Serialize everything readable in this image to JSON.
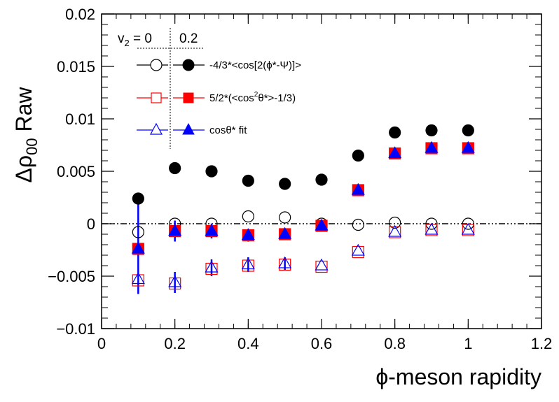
{
  "chart_data": {
    "type": "scatter",
    "xlabel": "ϕ-meson rapidity",
    "ylabel": "Δρ",
    "ylabel_sub": "00",
    "ylabel_suffix": " Raw",
    "xlim": [
      0,
      1.2
    ],
    "ylim": [
      -0.01,
      0.02
    ],
    "x_ticks": [
      "0",
      "0.2",
      "0.4",
      "0.6",
      "0.8",
      "1",
      "1.2"
    ],
    "y_ticks": [
      "−0.01",
      "−0.005",
      "0",
      "0.005",
      "0.01",
      "0.015",
      "0.02"
    ],
    "v2_header": {
      "left_prefix": "v",
      "left_sub": "2",
      "left_suffix": " = 0",
      "right": "0.2"
    },
    "legend_labels": {
      "s1": "-4/3*<cos[2(ϕ*-Ψ)]>",
      "s2_prefix": "5/2*(<cos",
      "s2_sup": "2",
      "s2_suffix": "θ*>-1/3)",
      "s3": "cosθ* fit"
    },
    "x": [
      0.1,
      0.2,
      0.3,
      0.4,
      0.5,
      0.6,
      0.7,
      0.8,
      0.9,
      1.0
    ],
    "series": [
      {
        "id": "s1_v0",
        "marker": "circle",
        "filled": false,
        "color": "#000000",
        "values": [
          -0.0008,
          0.0,
          0.0,
          0.0007,
          0.0006,
          0.0,
          -0.0001,
          0.0001,
          0.0,
          0.0
        ]
      },
      {
        "id": "s1_v2",
        "marker": "circle",
        "filled": true,
        "color": "#000000",
        "values": [
          0.0024,
          0.0053,
          0.005,
          0.0041,
          0.0038,
          0.0042,
          0.0065,
          0.0087,
          0.0089,
          0.0089
        ]
      },
      {
        "id": "s2_v0",
        "marker": "square",
        "filled": false,
        "color": "#ff0000",
        "values": [
          -0.0054,
          -0.0057,
          -0.0043,
          -0.004,
          -0.0039,
          -0.0041,
          -0.0027,
          -0.0008,
          -0.0006,
          -0.0006
        ]
      },
      {
        "id": "s2_v2",
        "marker": "square",
        "filled": true,
        "color": "#ff0000",
        "values": [
          -0.0024,
          -0.0007,
          -0.0007,
          -0.0011,
          -0.001,
          -0.0002,
          0.0032,
          0.0067,
          0.0072,
          0.0072
        ]
      },
      {
        "id": "s3_v0",
        "marker": "triangle",
        "filled": false,
        "color": "#0000ff",
        "values": [
          -0.0053,
          -0.0056,
          -0.0042,
          -0.0039,
          -0.0038,
          -0.004,
          -0.0026,
          -0.0008,
          -0.0006,
          -0.0006
        ],
        "errors": [
          0.0,
          0.001,
          0.0008,
          0.0007,
          0.0006,
          0.0,
          0.0,
          0.0,
          0.0,
          0.0
        ]
      },
      {
        "id": "s3_v2",
        "marker": "triangle",
        "filled": true,
        "color": "#0000ff",
        "values": [
          -0.0024,
          -0.0007,
          -0.0007,
          -0.0011,
          -0.001,
          -0.0002,
          0.0032,
          0.0067,
          0.0072,
          0.0072
        ],
        "errors": [
          0.0043,
          0.001,
          0.0007,
          0.0006,
          0.0005,
          0.0,
          0.0,
          0.0,
          0.0,
          0.0
        ]
      }
    ],
    "zero_line": true,
    "grid": false
  }
}
